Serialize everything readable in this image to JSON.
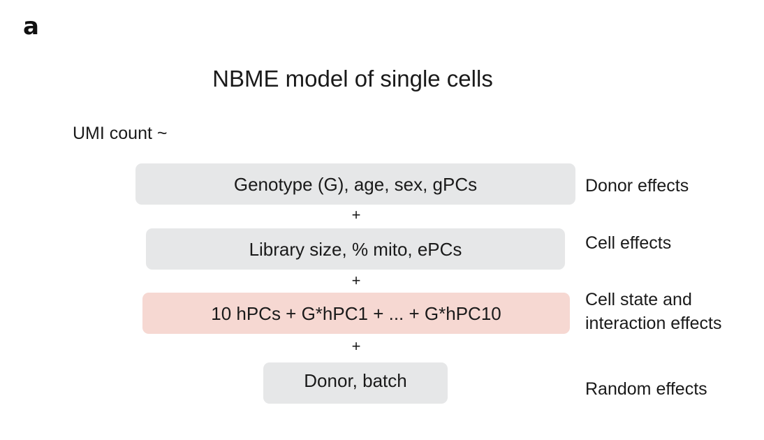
{
  "panel_label": "a",
  "title": "NBME model of single cells",
  "response": "UMI count ~",
  "terms": [
    {
      "box_text": "Genotype (G), age, sex, gPCs",
      "effect_label": "Donor effects",
      "highlight": false
    },
    {
      "box_text": "Library size, % mito, ePCs",
      "effect_label": "Cell effects",
      "highlight": false
    },
    {
      "box_text": "10 hPCs + G*hPC1 + ... + G*hPC10",
      "effect_label_line1": "Cell state and",
      "effect_label_line2": "interaction effects",
      "highlight": true
    },
    {
      "box_text": "Donor, batch",
      "effect_label": "Random effects",
      "highlight": false
    }
  ],
  "operator": "+",
  "colors": {
    "box_fill": "#e6e7e8",
    "highlight_fill": "#f6d8d2",
    "text": "#1a1a1a"
  }
}
